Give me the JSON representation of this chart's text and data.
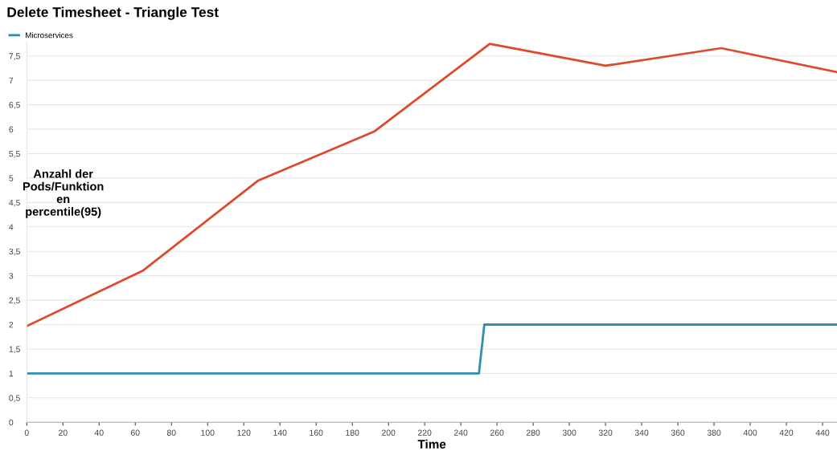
{
  "chart_data": {
    "type": "line",
    "title": "Delete Timesheet - Triangle Test",
    "xlabel": "Time",
    "ylabel": "Anzahl der\nPods/Funktion\nen\npercentile(95)",
    "series": [
      {
        "name": "Microservices",
        "color": "#2f8fae",
        "x": [
          0,
          250,
          253,
          448
        ],
        "values": [
          1,
          1,
          2,
          2
        ]
      },
      {
        "color": "#dd4a2c",
        "x": [
          0,
          64,
          128,
          192,
          256,
          320,
          384,
          448
        ],
        "values": [
          1.97,
          3.1,
          4.95,
          5.95,
          7.75,
          7.3,
          7.66,
          7.17
        ]
      }
    ],
    "xlim": [
      0,
      448
    ],
    "ylim": [
      0,
      7.8
    ],
    "xticks": [
      0,
      20,
      40,
      60,
      80,
      100,
      120,
      140,
      160,
      180,
      200,
      220,
      240,
      260,
      280,
      300,
      320,
      340,
      360,
      380,
      400,
      420,
      440
    ],
    "yticks": [
      0,
      {
        "value": 0.5,
        "label": "0,5"
      },
      1,
      {
        "value": 1.5,
        "label": "1,5"
      },
      2,
      {
        "value": 2.5,
        "label": "2,5"
      },
      3,
      {
        "value": 3.5,
        "label": "3,5"
      },
      4,
      {
        "value": 4.5,
        "label": "4,5"
      },
      5,
      {
        "value": 5.5,
        "label": "5,5"
      },
      6,
      {
        "value": 6.5,
        "label": "6,5"
      },
      7,
      {
        "value": 7.5,
        "label": "7,5"
      }
    ],
    "grid": "y",
    "legend": "top left",
    "marker": "none",
    "line_style": "solid"
  }
}
